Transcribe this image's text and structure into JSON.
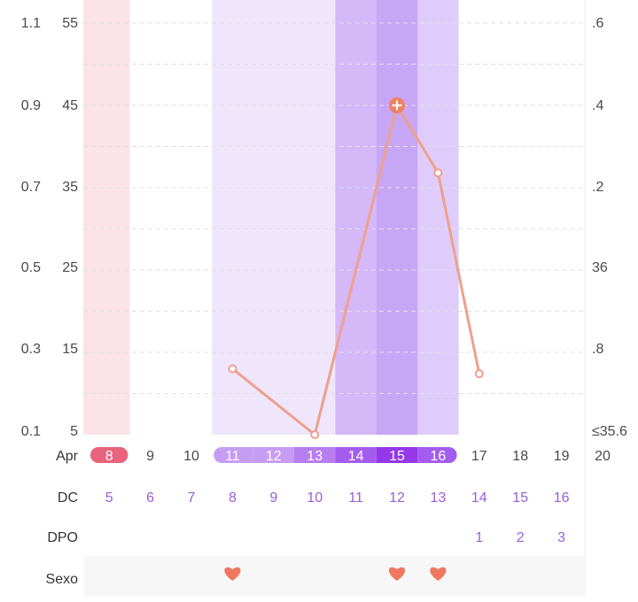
{
  "chart_data": {
    "type": "line",
    "y_axis_left_outer": [
      "1.1",
      "0.9",
      "0.7",
      "0.5",
      "0.3",
      "0.1"
    ],
    "y_axis_left_inner": [
      "55",
      "45",
      "35",
      "25",
      "15",
      "5"
    ],
    "y_axis_right": [
      ".6",
      ".4",
      ".2",
      "36",
      ".8",
      "≤35.6"
    ],
    "ylim": [
      5,
      55
    ],
    "month_label": "Apr",
    "dates": [
      "8",
      "9",
      "10",
      "11",
      "12",
      "13",
      "14",
      "15",
      "16",
      "17",
      "18",
      "19",
      "20"
    ],
    "row_labels": {
      "dc": "DC",
      "dpo": "DPO",
      "sexo": "Sexo"
    },
    "dc": [
      "5",
      "6",
      "7",
      "8",
      "9",
      "10",
      "11",
      "12",
      "13",
      "14",
      "15",
      "16",
      ""
    ],
    "dpo": [
      "",
      "",
      "",
      "",
      "",
      "",
      "",
      "",
      "",
      "1",
      "2",
      "3",
      ""
    ],
    "series": [
      {
        "x": [
          "11",
          "13",
          "15",
          "16",
          "17"
        ],
        "values": [
          13,
          5,
          45,
          36.8,
          12.4
        ]
      }
    ],
    "highlight_point": {
      "x": "15",
      "value": 45,
      "marker": "plus-icon"
    },
    "intercourse_days": [
      "11",
      "15",
      "16"
    ],
    "period_days": [
      "8"
    ],
    "fertile_days": [
      "11",
      "12",
      "13",
      "14",
      "15",
      "16"
    ],
    "peak_days": [
      "14",
      "15"
    ],
    "ovulation_day": "15",
    "grid": true,
    "colors": {
      "line": "#eea08d",
      "marker_fill": "#f08060",
      "heart": "#f07860",
      "period_band": "#fbe3e8",
      "period_pill": "#e8637e",
      "fertile_band_light": "#efe6fc",
      "fertile_band_mid": "#e0ccfa",
      "peak_band": "#d4b8f8",
      "ovulation_band": "#c8a6f6",
      "fertile_pill_light": "#c79df3",
      "fertile_pill_mid": "#b77ef0",
      "peak_pill": "#a45cee",
      "ovulation_pill": "#9438ea",
      "dc_text": "#9a5ed8",
      "date_text": "#4a4a4a",
      "grid": "#e0e0e0",
      "sexo_row_bg": "#f7f7f7"
    }
  }
}
